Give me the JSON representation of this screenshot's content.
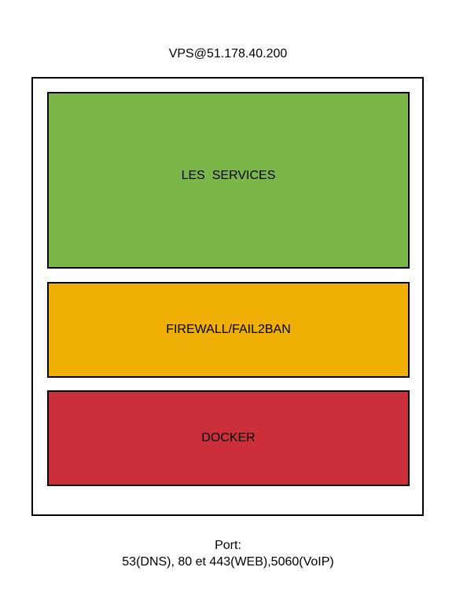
{
  "diagram": {
    "title": "VPS@51.178.40.200",
    "layers": [
      {
        "label": "LES  SERVICES",
        "color": "#7ab648"
      },
      {
        "label": "FIREWALL/FAIL2BAN",
        "color": "#efaf05"
      },
      {
        "label": "DOCKER",
        "color": "#ca2f3a"
      }
    ],
    "footer": {
      "line1": "Port:",
      "line2": "53(DNS), 80 et 443(WEB),5060(VoIP)"
    }
  }
}
